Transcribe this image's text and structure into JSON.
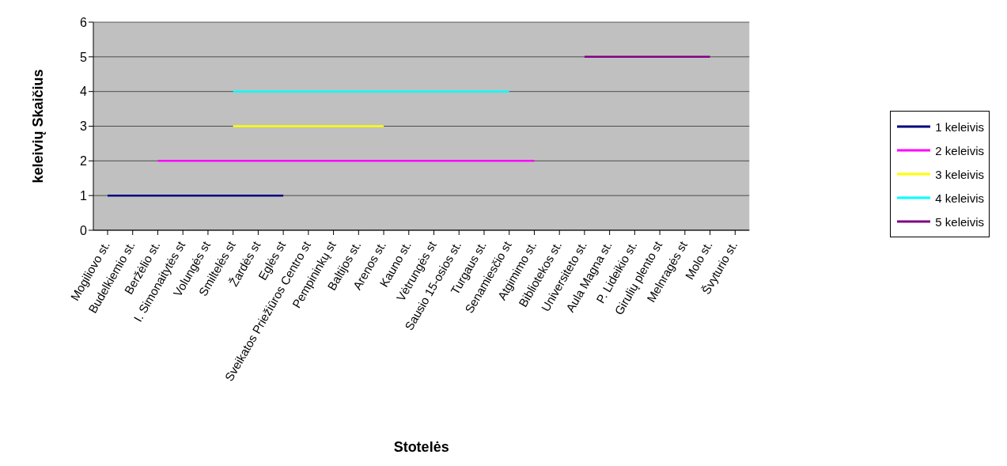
{
  "chart_data": {
    "type": "line",
    "xlabel": "Stotelės",
    "ylabel": "keleivių Skaičius",
    "categories": [
      "Mogiliovo st.",
      "Budelkiemio st.",
      "Beržėlio st.",
      "I. Simonaitytės st",
      "Volungės st",
      "Smiltelės st",
      "Žardės st",
      "Eglės st",
      "Sveikatos Priežiūros Centro st",
      "Pempininkų st",
      "Baltijos st.",
      "Arenos st.",
      "Kauno st.",
      "Vėtrungės st",
      "Sausio 15-osios st.",
      "Turgaus st.",
      "Senamiesčio st",
      "Atgimimo st.",
      "Bibliotekos st.",
      "Universiteto st.",
      "Aula Magna st.",
      "P. Lideikio st.",
      "Girulių plento st",
      "Melnragės st",
      "Molo st.",
      "Švyturio st."
    ],
    "series": [
      {
        "name": "1 keleivis",
        "color": "#000080",
        "values": [
          1,
          1,
          1,
          1,
          1,
          1,
          1,
          1,
          null,
          null,
          null,
          null,
          null,
          null,
          null,
          null,
          null,
          null,
          null,
          null,
          null,
          null,
          null,
          null,
          null,
          null
        ]
      },
      {
        "name": "2 keleivis",
        "color": "#ff00ff",
        "values": [
          null,
          null,
          2,
          2,
          2,
          2,
          2,
          2,
          2,
          2,
          2,
          2,
          2,
          2,
          2,
          2,
          2,
          2,
          null,
          null,
          null,
          null,
          null,
          null,
          null,
          null
        ]
      },
      {
        "name": "3 keleivis",
        "color": "#ffff00",
        "values": [
          null,
          null,
          null,
          null,
          null,
          3,
          3,
          3,
          3,
          3,
          3,
          3,
          null,
          null,
          null,
          null,
          null,
          null,
          null,
          null,
          null,
          null,
          null,
          null,
          null,
          null
        ]
      },
      {
        "name": "4 keleivis",
        "color": "#00ffff",
        "values": [
          null,
          null,
          null,
          null,
          null,
          4,
          4,
          4,
          4,
          4,
          4,
          4,
          4,
          4,
          4,
          4,
          4,
          null,
          null,
          null,
          null,
          null,
          null,
          null,
          null,
          null
        ]
      },
      {
        "name": "5 keleivis",
        "color": "#800080",
        "values": [
          null,
          null,
          null,
          null,
          null,
          null,
          null,
          null,
          null,
          null,
          null,
          null,
          null,
          null,
          null,
          null,
          null,
          null,
          null,
          5,
          5,
          5,
          5,
          5,
          5,
          null
        ]
      }
    ],
    "ylim": [
      0,
      6
    ],
    "yticks": [
      0,
      1,
      2,
      3,
      4,
      5,
      6
    ],
    "grid": "y",
    "legend": "right",
    "marker": "none",
    "line_style": "solid"
  }
}
